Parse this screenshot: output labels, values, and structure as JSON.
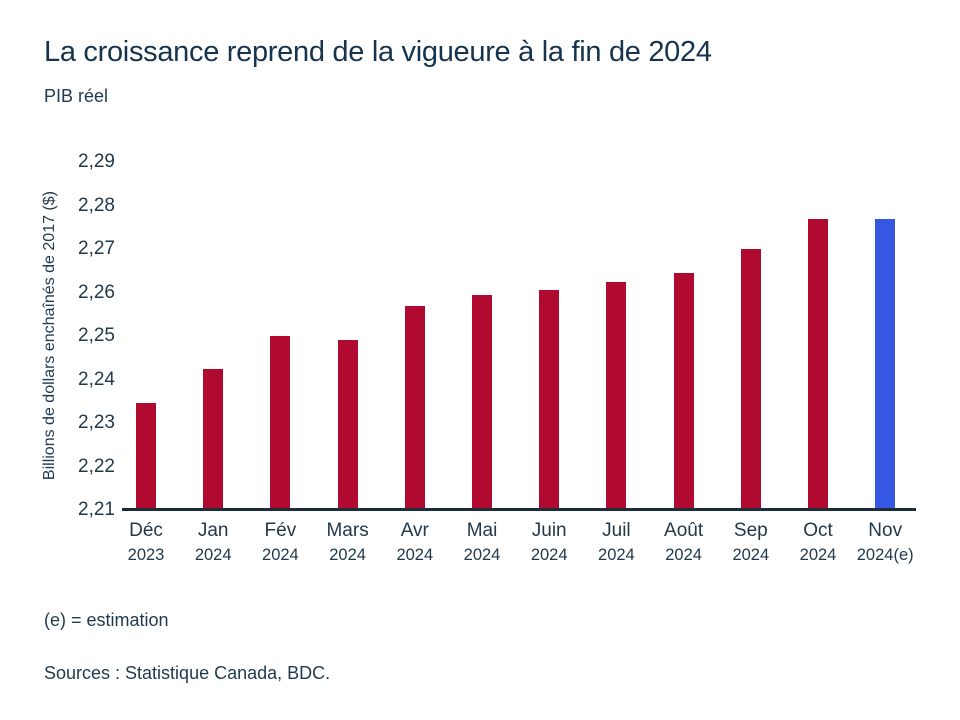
{
  "header": {
    "title": "La croissance reprend de la vigueure à la fin de 2024",
    "subtitle": "PIB réel"
  },
  "chart_data": {
    "type": "bar",
    "title": "La croissance reprend de la vigueure à la fin de 2024",
    "subtitle": "PIB réel",
    "ylabel": "Billions de dollars enchaînés de 2017 ($)",
    "xlabel": "",
    "categories": [
      {
        "month": "Déc",
        "year": "2023"
      },
      {
        "month": "Jan",
        "year": "2024"
      },
      {
        "month": "Fév",
        "year": "2024"
      },
      {
        "month": "Mars",
        "year": "2024"
      },
      {
        "month": "Avr",
        "year": "2024"
      },
      {
        "month": "Mai",
        "year": "2024"
      },
      {
        "month": "Juin",
        "year": "2024"
      },
      {
        "month": "Juil",
        "year": "2024"
      },
      {
        "month": "Août",
        "year": "2024"
      },
      {
        "month": "Sep",
        "year": "2024"
      },
      {
        "month": "Oct",
        "year": "2024"
      },
      {
        "month": "Nov",
        "year": "2024(e)"
      }
    ],
    "values": [
      2.2345,
      2.2425,
      2.25,
      2.249,
      2.257,
      2.2595,
      2.2605,
      2.2625,
      2.2645,
      2.27,
      2.277,
      2.277
    ],
    "ylim": [
      2.21,
      2.29
    ],
    "ytick_labels": [
      "2,21",
      "2,22",
      "2,23",
      "2,24",
      "2,25",
      "2,26",
      "2,27",
      "2,28",
      "2,29"
    ],
    "grid": false,
    "legend": "none",
    "bar_color": "#b00a30",
    "highlight_color": "#3656e4",
    "highlight_index": 11,
    "axis_color": "#1b2c3c"
  },
  "footer": {
    "note": "(e) = estimation",
    "sources": "Sources : Statistique Canada, BDC."
  }
}
